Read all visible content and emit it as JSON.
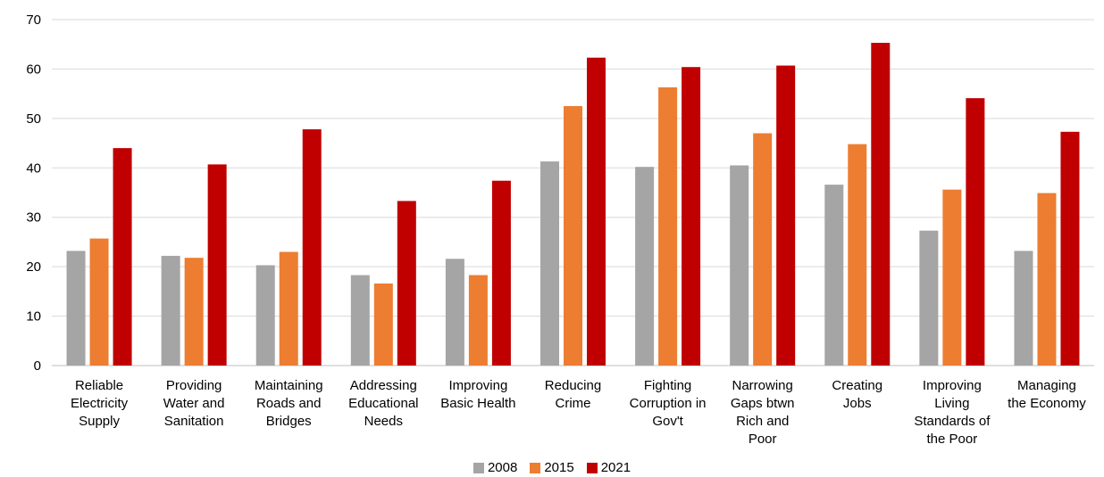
{
  "chart_data": {
    "type": "bar",
    "title": "",
    "xlabel": "",
    "ylabel": "",
    "ylim": [
      0,
      70
    ],
    "yticks": [
      0,
      10,
      20,
      30,
      40,
      50,
      60,
      70
    ],
    "grid": true,
    "legend_position": "bottom",
    "categories": [
      [
        "Reliable",
        "Electricity",
        "Supply"
      ],
      [
        "Providing",
        "Water and",
        "Sanitation"
      ],
      [
        "Maintaining",
        "Roads and",
        "Bridges"
      ],
      [
        "Addressing",
        "Educational",
        "Needs"
      ],
      [
        "Improving",
        "Basic Health"
      ],
      [
        "Reducing",
        "Crime"
      ],
      [
        "Fighting",
        "Corruption in",
        "Gov't"
      ],
      [
        "Narrowing",
        "Gaps btwn",
        "Rich and",
        "Poor"
      ],
      [
        "Creating",
        "Jobs"
      ],
      [
        "Improving",
        "Living",
        "Standards of",
        "the Poor"
      ],
      [
        "Managing",
        "the Economy"
      ]
    ],
    "series": [
      {
        "name": "2008",
        "color": "#a5a5a5",
        "values": [
          23.2,
          22.2,
          20.3,
          18.3,
          21.6,
          41.3,
          40.2,
          40.5,
          36.6,
          27.3,
          23.2
        ]
      },
      {
        "name": "2015",
        "color": "#ed7d31",
        "values": [
          25.7,
          21.8,
          23.0,
          16.6,
          18.3,
          52.5,
          56.3,
          47.0,
          44.8,
          35.6,
          34.9
        ]
      },
      {
        "name": "2021",
        "color": "#c00000",
        "values": [
          44.0,
          40.7,
          47.8,
          33.3,
          37.4,
          62.3,
          60.4,
          60.7,
          65.3,
          54.1,
          47.3
        ]
      }
    ]
  }
}
